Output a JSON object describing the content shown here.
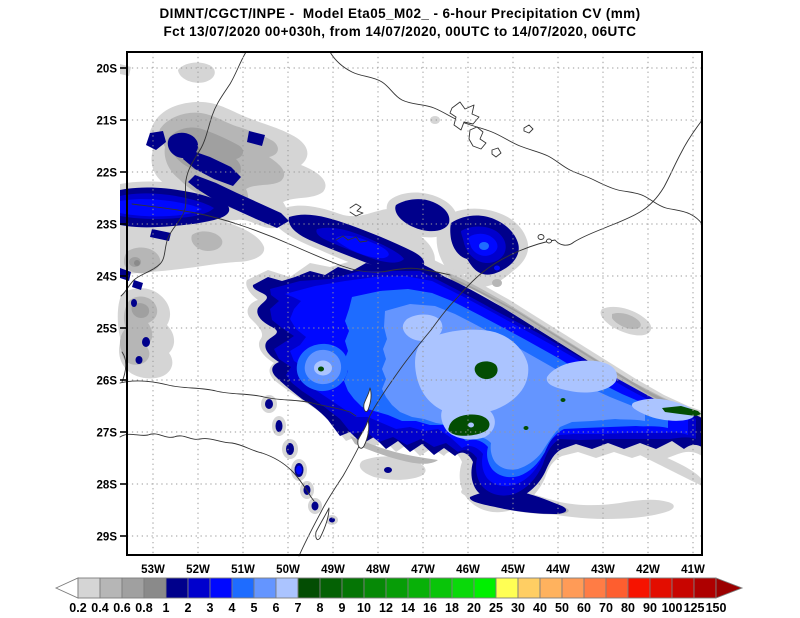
{
  "header": {
    "title_line1": "DIMNT/CGCT/INPE -  Model Eta05_M02_ - 6-hour Precipitation CV (mm)",
    "title_line2": "Fct 13/07/2020 00+030h, from 14/07/2020, 00UTC to 14/07/2020, 06UTC"
  },
  "map": {
    "lat_ticks": [
      "20S",
      "21S",
      "22S",
      "23S",
      "24S",
      "25S",
      "26S",
      "27S",
      "28S",
      "29S"
    ],
    "lon_ticks": [
      "53W",
      "52W",
      "51W",
      "50W",
      "49W",
      "48W",
      "47W",
      "46W",
      "45W",
      "44W",
      "43W",
      "42W",
      "41W"
    ]
  },
  "colorbar": {
    "units": "mm",
    "tick_labels": [
      "0.2",
      "0.4",
      "0.6",
      "0.8",
      "1",
      "2",
      "3",
      "4",
      "5",
      "6",
      "7",
      "8",
      "9",
      "10",
      "12",
      "14",
      "16",
      "18",
      "20",
      "25",
      "30",
      "40",
      "50",
      "60",
      "70",
      "80",
      "90",
      "100",
      "125",
      "150"
    ],
    "cell_colors": [
      "#ffffff",
      "#d5d5d5",
      "#b6b6b6",
      "#a0a0a0",
      "#8a8a8a",
      "#00008b",
      "#0000cd",
      "#0008ff",
      "#1e6cff",
      "#6495ff",
      "#abc4ff",
      "#034d03",
      "#046104",
      "#057505",
      "#068906",
      "#079d07",
      "#08b108",
      "#09c509",
      "#0ad90a",
      "#00f000",
      "#ffff54",
      "#ffce63",
      "#ffb25e",
      "#ff9b57",
      "#ff7c45",
      "#fe5e2f",
      "#f61300",
      "#e30d00",
      "#c80500",
      "#ae0000",
      "#9b0000"
    ]
  }
}
